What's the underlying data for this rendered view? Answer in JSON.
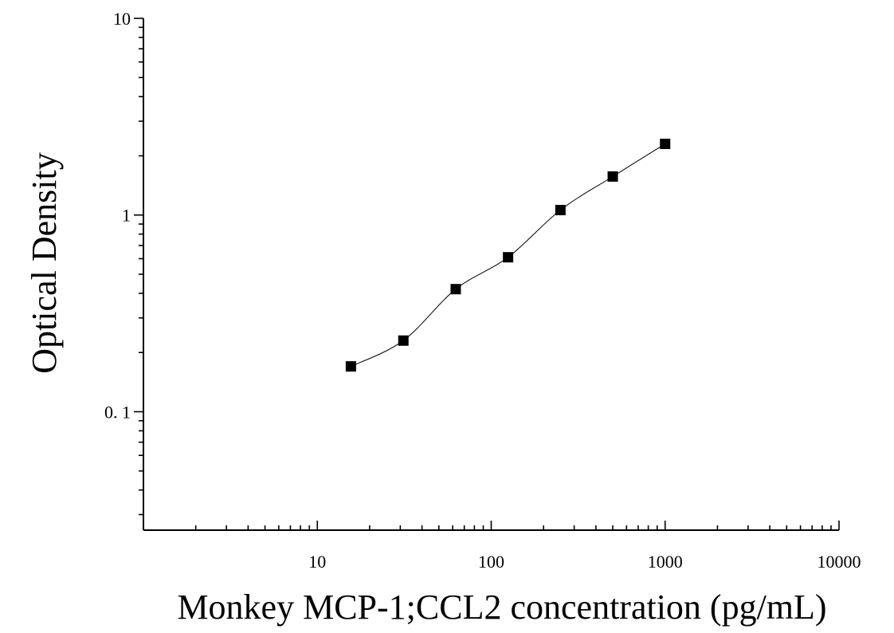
{
  "chart_data": {
    "type": "scatter",
    "title": "",
    "xlabel": "Monkey MCP-1;CCL2 concentration (pg/mL)",
    "ylabel": "Optical Density",
    "x_scale": "log",
    "y_scale": "log",
    "xlim": [
      1,
      10000
    ],
    "ylim": [
      0.025,
      10
    ],
    "x_ticks": [
      {
        "value": 10,
        "label": "10"
      },
      {
        "value": 100,
        "label": "100"
      },
      {
        "value": 1000,
        "label": "1000"
      },
      {
        "value": 10000,
        "label": "10000"
      }
    ],
    "y_ticks": [
      {
        "value": 0.1,
        "label": "0. 1"
      },
      {
        "value": 1,
        "label": "1"
      },
      {
        "value": 10,
        "label": "10"
      }
    ],
    "grid": false,
    "legend": "none",
    "series": [
      {
        "x": [
          15.6,
          31.25,
          62.5,
          125,
          250,
          500,
          1000
        ],
        "y": [
          0.17,
          0.23,
          0.42,
          0.61,
          1.06,
          1.57,
          2.3
        ],
        "marker": "square",
        "fit_curve": true,
        "color": "#000000"
      }
    ]
  }
}
